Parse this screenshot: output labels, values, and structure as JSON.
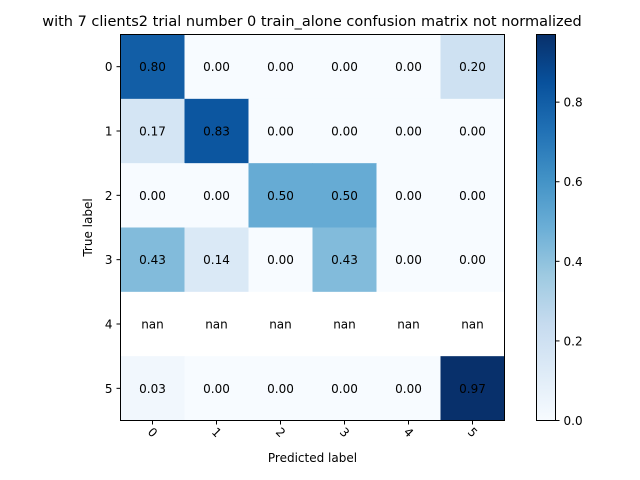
{
  "chart_data": {
    "type": "heatmap",
    "title": "with 7 clients2 trial number 0 train_alone confusion matrix not normalized",
    "xlabel": "Predicted label",
    "ylabel": "True label",
    "x_categories": [
      "0",
      "1",
      "2",
      "3",
      "4",
      "5"
    ],
    "y_categories": [
      "0",
      "1",
      "2",
      "3",
      "4",
      "5"
    ],
    "values": [
      [
        0.8,
        0.0,
        0.0,
        0.0,
        0.0,
        0.2
      ],
      [
        0.17,
        0.83,
        0.0,
        0.0,
        0.0,
        0.0
      ],
      [
        0.0,
        0.0,
        0.5,
        0.5,
        0.0,
        0.0
      ],
      [
        0.43,
        0.14,
        0.0,
        0.43,
        0.0,
        0.0
      ],
      [
        null,
        null,
        null,
        null,
        null,
        null
      ],
      [
        0.03,
        0.0,
        0.0,
        0.0,
        0.0,
        0.97
      ]
    ],
    "cell_labels": [
      [
        "0.80",
        "0.00",
        "0.00",
        "0.00",
        "0.00",
        "0.20"
      ],
      [
        "0.17",
        "0.83",
        "0.00",
        "0.00",
        "0.00",
        "0.00"
      ],
      [
        "0.00",
        "0.00",
        "0.50",
        "0.50",
        "0.00",
        "0.00"
      ],
      [
        "0.43",
        "0.14",
        "0.00",
        "0.43",
        "0.00",
        "0.00"
      ],
      [
        "nan",
        "nan",
        "nan",
        "nan",
        "nan",
        "nan"
      ],
      [
        "0.03",
        "0.00",
        "0.00",
        "0.00",
        "0.00",
        "0.97"
      ]
    ],
    "colormap": "Blues",
    "color_range": [
      0.0,
      0.97
    ],
    "colorbar_ticks": [
      "0.0",
      "0.2",
      "0.4",
      "0.6",
      "0.8"
    ],
    "colorbar_tick_values": [
      0.0,
      0.2,
      0.4,
      0.6,
      0.8
    ],
    "nan_color": "#ffffff",
    "x_tick_rotation": 45,
    "grid": false
  }
}
